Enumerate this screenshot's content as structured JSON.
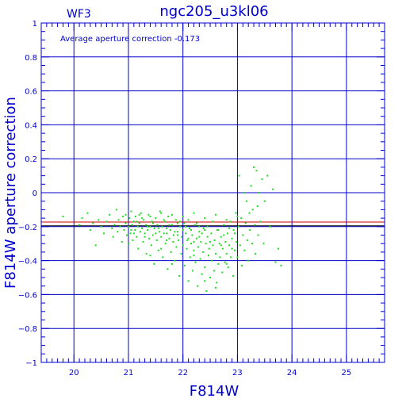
{
  "chart_data": {
    "type": "scatter",
    "title": "ngc205_u3kl06",
    "instrument": "WF3",
    "annotation": "Average aperture correction   -0.173",
    "xlabel": "F814W",
    "ylabel": "F814W aperture correction",
    "xlim": [
      19.4,
      25.7
    ],
    "ylim": [
      -1,
      1
    ],
    "xticks": [
      20,
      21,
      22,
      23,
      24,
      25
    ],
    "yticks": [
      -1,
      -0.8,
      -0.6,
      -0.4,
      -0.2,
      0,
      0.2,
      0.4,
      0.6,
      0.8,
      1
    ],
    "xtick_labels": [
      "20",
      "21",
      "22",
      "23",
      "24",
      "25"
    ],
    "ytick_labels": [
      "−1",
      "−0.8",
      "−0.6",
      "−0.4",
      "−0.2",
      "0",
      "0.2",
      "0.4",
      "0.6",
      "0.8",
      "1"
    ],
    "grid": true,
    "reference_lines": [
      {
        "y": -0.173,
        "color": "#cc0000"
      },
      {
        "y": -0.195,
        "color": "#000000"
      }
    ],
    "point_color": "#22dd22",
    "axis_color": "#0000cc",
    "series": [
      {
        "points": [
          [
            19.8,
            -0.14
          ],
          [
            20.1,
            -0.19
          ],
          [
            20.15,
            -0.15
          ],
          [
            20.25,
            -0.12
          ],
          [
            20.3,
            -0.22
          ],
          [
            20.35,
            -0.18
          ],
          [
            20.4,
            -0.31
          ],
          [
            20.45,
            -0.16
          ],
          [
            20.5,
            -0.2
          ],
          [
            20.55,
            -0.24
          ],
          [
            20.6,
            -0.17
          ],
          [
            20.65,
            -0.13
          ],
          [
            20.7,
            -0.21
          ],
          [
            20.72,
            -0.26
          ],
          [
            20.75,
            -0.19
          ],
          [
            20.78,
            -0.1
          ],
          [
            20.8,
            -0.23
          ],
          [
            20.82,
            -0.16
          ],
          [
            20.85,
            -0.2
          ],
          [
            20.88,
            -0.29
          ],
          [
            20.9,
            -0.14
          ],
          [
            20.92,
            -0.22
          ],
          [
            20.95,
            -0.18
          ],
          [
            20.97,
            -0.25
          ],
          [
            21.0,
            -0.2
          ],
          [
            21.02,
            -0.15
          ],
          [
            21.04,
            -0.24
          ],
          [
            21.05,
            -0.11
          ],
          [
            21.07,
            -0.19
          ],
          [
            21.08,
            -0.28
          ],
          [
            21.1,
            -0.17
          ],
          [
            21.12,
            -0.22
          ],
          [
            21.13,
            -0.14
          ],
          [
            21.15,
            -0.26
          ],
          [
            21.17,
            -0.2
          ],
          [
            21.18,
            -0.33
          ],
          [
            21.2,
            -0.18
          ],
          [
            21.22,
            -0.23
          ],
          [
            21.23,
            -0.12
          ],
          [
            21.25,
            -0.21
          ],
          [
            21.27,
            -0.29
          ],
          [
            21.28,
            -0.16
          ],
          [
            21.3,
            -0.24
          ],
          [
            21.32,
            -0.19
          ],
          [
            21.33,
            -0.36
          ],
          [
            21.35,
            -0.22
          ],
          [
            21.37,
            -0.13
          ],
          [
            21.38,
            -0.27
          ],
          [
            21.4,
            -0.2
          ],
          [
            21.42,
            -0.31
          ],
          [
            21.43,
            -0.17
          ],
          [
            21.45,
            -0.25
          ],
          [
            21.47,
            -0.42
          ],
          [
            21.48,
            -0.21
          ],
          [
            21.5,
            -0.15
          ],
          [
            21.52,
            -0.28
          ],
          [
            21.53,
            -0.19
          ],
          [
            21.55,
            -0.34
          ],
          [
            21.57,
            -0.23
          ],
          [
            21.58,
            -0.11
          ],
          [
            21.6,
            -0.26
          ],
          [
            21.62,
            -0.2
          ],
          [
            21.63,
            -0.38
          ],
          [
            21.65,
            -0.24
          ],
          [
            21.67,
            -0.17
          ],
          [
            21.68,
            -0.3
          ],
          [
            21.7,
            -0.21
          ],
          [
            21.72,
            -0.45
          ],
          [
            21.73,
            -0.14
          ],
          [
            21.75,
            -0.27
          ],
          [
            21.77,
            -0.22
          ],
          [
            21.78,
            -0.35
          ],
          [
            21.8,
            -0.19
          ],
          [
            21.82,
            -0.29
          ],
          [
            21.83,
            -0.25
          ],
          [
            21.85,
            -0.4
          ],
          [
            21.87,
            -0.16
          ],
          [
            21.88,
            -0.32
          ],
          [
            21.9,
            -0.23
          ],
          [
            21.92,
            -0.28
          ],
          [
            21.93,
            -0.49
          ],
          [
            21.95,
            -0.2
          ],
          [
            21.97,
            -0.36
          ],
          [
            21.98,
            -0.26
          ],
          [
            22.0,
            -0.31
          ],
          [
            22.02,
            -0.18
          ],
          [
            22.03,
            -0.43
          ],
          [
            22.05,
            -0.24
          ],
          [
            22.07,
            -0.33
          ],
          [
            22.08,
            -0.28
          ],
          [
            22.1,
            -0.52
          ],
          [
            22.12,
            -0.21
          ],
          [
            22.13,
            -0.38
          ],
          [
            22.15,
            -0.3
          ],
          [
            22.17,
            -0.25
          ],
          [
            22.18,
            -0.46
          ],
          [
            22.2,
            -0.34
          ],
          [
            22.22,
            -0.19
          ],
          [
            22.23,
            -0.41
          ],
          [
            22.25,
            -0.27
          ],
          [
            22.27,
            -0.55
          ],
          [
            22.28,
            -0.32
          ],
          [
            22.3,
            -0.23
          ],
          [
            22.32,
            -0.39
          ],
          [
            22.33,
            -0.29
          ],
          [
            22.35,
            -0.48
          ],
          [
            22.37,
            -0.35
          ],
          [
            22.38,
            -0.21
          ],
          [
            22.4,
            -0.44
          ],
          [
            22.42,
            -0.3
          ],
          [
            22.43,
            -0.58
          ],
          [
            22.45,
            -0.26
          ],
          [
            22.47,
            -0.37
          ],
          [
            22.48,
            -0.33
          ],
          [
            22.5,
            -0.5
          ],
          [
            22.52,
            -0.24
          ],
          [
            22.53,
            -0.4
          ],
          [
            22.55,
            -0.31
          ],
          [
            22.57,
            -0.46
          ],
          [
            22.58,
            -0.28
          ],
          [
            22.6,
            -0.36
          ],
          [
            22.62,
            -0.53
          ],
          [
            22.63,
            -0.22
          ],
          [
            22.65,
            -0.42
          ],
          [
            22.67,
            -0.3
          ],
          [
            22.68,
            -0.38
          ],
          [
            22.7,
            -0.26
          ],
          [
            22.72,
            -0.47
          ],
          [
            22.73,
            -0.33
          ],
          [
            22.75,
            -0.19
          ],
          [
            22.77,
            -0.41
          ],
          [
            22.78,
            -0.29
          ],
          [
            22.8,
            -0.36
          ],
          [
            22.82,
            -0.24
          ],
          [
            22.83,
            -0.44
          ],
          [
            22.85,
            -0.31
          ],
          [
            22.87,
            -0.17
          ],
          [
            22.88,
            -0.38
          ],
          [
            22.9,
            -0.27
          ],
          [
            22.92,
            -0.49
          ],
          [
            22.93,
            -0.22
          ],
          [
            22.95,
            -0.34
          ],
          [
            22.97,
            -0.12
          ],
          [
            22.98,
            -0.29
          ],
          [
            23.0,
            -0.38
          ],
          [
            23.02,
            -0.2
          ],
          [
            23.03,
            0.1
          ],
          [
            23.05,
            -0.31
          ],
          [
            23.07,
            -0.15
          ],
          [
            23.08,
            -0.43
          ],
          [
            23.1,
            -0.25
          ],
          [
            23.12,
            0.0
          ],
          [
            23.13,
            -0.34
          ],
          [
            23.15,
            -0.18
          ],
          [
            23.17,
            -0.05
          ],
          [
            23.18,
            -0.28
          ],
          [
            23.2,
            -0.4
          ],
          [
            23.22,
            -0.12
          ],
          [
            23.23,
            -0.22
          ],
          [
            23.25,
            0.04
          ],
          [
            23.27,
            -0.3
          ],
          [
            23.28,
            -0.1
          ],
          [
            23.3,
            0.15
          ],
          [
            23.32,
            -0.19
          ],
          [
            23.33,
            -0.36
          ],
          [
            23.35,
            0.13
          ],
          [
            23.37,
            -0.08
          ],
          [
            23.38,
            -0.25
          ],
          [
            23.4,
            0.0
          ],
          [
            23.42,
            -0.17
          ],
          [
            23.45,
            0.08
          ],
          [
            23.48,
            -0.3
          ],
          [
            23.5,
            -0.05
          ],
          [
            23.55,
            0.1
          ],
          [
            23.6,
            -0.2
          ],
          [
            23.65,
            0.02
          ],
          [
            23.7,
            -0.41
          ],
          [
            23.75,
            -0.33
          ],
          [
            23.8,
            -0.43
          ],
          [
            20.95,
            -0.13
          ],
          [
            21.05,
            -0.22
          ],
          [
            21.15,
            -0.17
          ],
          [
            21.25,
            -0.15
          ],
          [
            21.35,
            -0.2
          ],
          [
            21.45,
            -0.18
          ],
          [
            21.55,
            -0.21
          ],
          [
            21.65,
            -0.16
          ],
          [
            21.75,
            -0.19
          ],
          [
            21.85,
            -0.23
          ],
          [
            21.95,
            -0.17
          ],
          [
            22.05,
            -0.2
          ],
          [
            22.15,
            -0.22
          ],
          [
            22.25,
            -0.18
          ],
          [
            22.35,
            -0.24
          ],
          [
            22.45,
            -0.2
          ],
          [
            22.55,
            -0.17
          ],
          [
            22.65,
            -0.22
          ],
          [
            22.75,
            -0.25
          ],
          [
            22.85,
            -0.21
          ],
          [
            22.95,
            -0.24
          ],
          [
            21.1,
            -0.24
          ],
          [
            21.3,
            -0.26
          ],
          [
            21.5,
            -0.24
          ],
          [
            21.7,
            -0.28
          ],
          [
            21.9,
            -0.25
          ],
          [
            22.1,
            -0.27
          ],
          [
            22.3,
            -0.26
          ],
          [
            22.5,
            -0.29
          ],
          [
            22.7,
            -0.31
          ],
          [
            22.9,
            -0.33
          ],
          [
            21.2,
            -0.13
          ],
          [
            21.4,
            -0.14
          ],
          [
            21.6,
            -0.12
          ],
          [
            21.8,
            -0.13
          ],
          [
            22.0,
            -0.14
          ],
          [
            22.2,
            -0.12
          ],
          [
            22.4,
            -0.15
          ],
          [
            22.6,
            -0.13
          ],
          [
            22.8,
            -0.16
          ],
          [
            23.0,
            -0.14
          ],
          [
            21.0,
            -0.3
          ],
          [
            21.6,
            -0.33
          ],
          [
            22.2,
            -0.37
          ],
          [
            22.8,
            -0.42
          ],
          [
            21.8,
            -0.42
          ],
          [
            22.4,
            -0.52
          ],
          [
            22.6,
            -0.56
          ],
          [
            21.4,
            -0.37
          ],
          [
            22.0,
            -0.22
          ],
          [
            22.1,
            -0.16
          ],
          [
            21.9,
            -0.18
          ],
          [
            22.3,
            -0.2
          ],
          [
            22.4,
            -0.22
          ],
          [
            22.2,
            -0.29
          ],
          [
            21.7,
            -0.24
          ]
        ]
      }
    ]
  }
}
